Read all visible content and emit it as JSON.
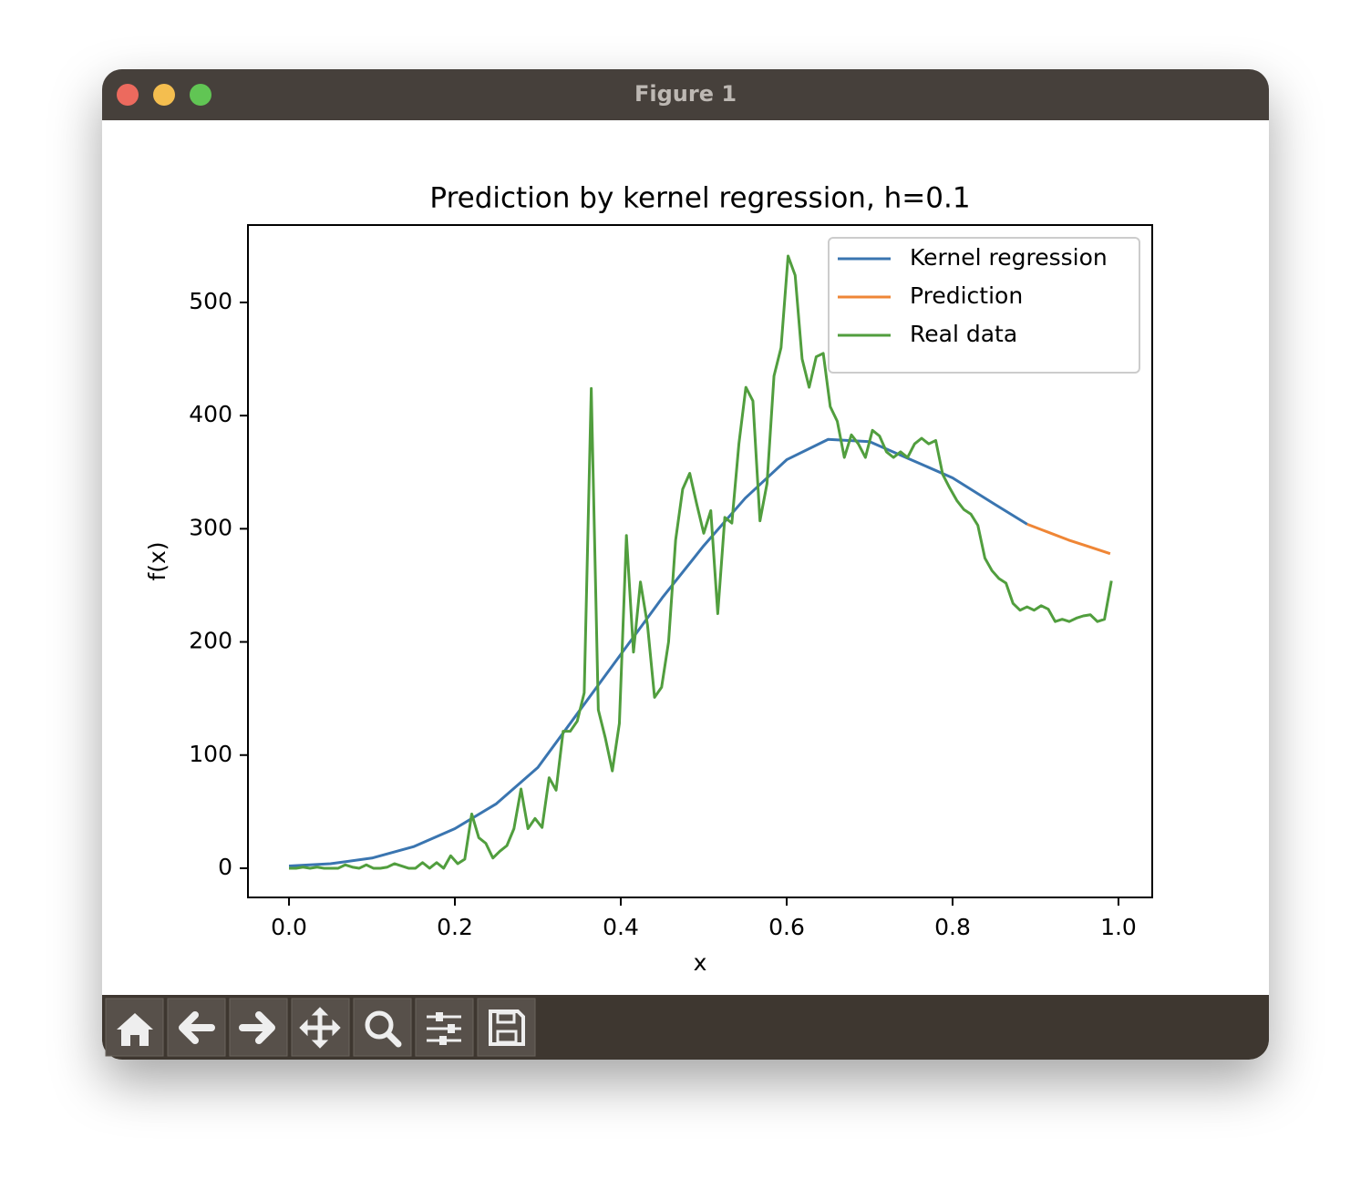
{
  "window": {
    "title": "Figure 1"
  },
  "chart_data": {
    "type": "line",
    "title": "Prediction by kernel regression, h=0.1",
    "x_label": "x",
    "y_label": "f(x)",
    "xlim": [
      -0.0495,
      1.0407
    ],
    "ylim": [
      -25.8,
      568.4
    ],
    "xticks": [
      {
        "value": 0,
        "label": "0.0"
      },
      0.2,
      0.4,
      0.6,
      0.8,
      {
        "value": 1,
        "label": "1.0"
      }
    ],
    "yticks": [
      0,
      100,
      200,
      300,
      400,
      500
    ],
    "legend": "upper right",
    "series": [
      {
        "name": "Kernel regression",
        "color": "#3a75b0",
        "x": [
          0,
          0.05,
          0.1,
          0.15,
          0.2,
          0.25,
          0.3,
          0.35,
          0.4,
          0.45,
          0.5,
          0.55,
          0.6,
          0.65,
          0.7,
          0.75,
          0.8,
          0.85,
          0.89
        ],
        "values": [
          2,
          4,
          9,
          19,
          35,
          57,
          89,
          139,
          189,
          239,
          285,
          327,
          361,
          379,
          377,
          361,
          345,
          322,
          304
        ]
      },
      {
        "name": "Prediction",
        "color": "#ef8636",
        "x": [
          0.89,
          0.915,
          0.94,
          0.965,
          0.99
        ],
        "values": [
          304,
          297,
          290,
          284,
          278
        ]
      },
      {
        "name": "Real data",
        "color": "#519e3e",
        "x": [
          0,
          0.0085,
          0.0169,
          0.0254,
          0.0339,
          0.0424,
          0.0508,
          0.0593,
          0.0678,
          0.0763,
          0.0847,
          0.0932,
          0.1017,
          0.1102,
          0.1186,
          0.1271,
          0.1356,
          0.1441,
          0.1525,
          0.161,
          0.1695,
          0.178,
          0.1864,
          0.1949,
          0.2034,
          0.2119,
          0.2203,
          0.2288,
          0.2373,
          0.2458,
          0.2542,
          0.2627,
          0.2712,
          0.2797,
          0.2881,
          0.2966,
          0.3051,
          0.3136,
          0.322,
          0.3305,
          0.339,
          0.3475,
          0.3559,
          0.3644,
          0.3729,
          0.3814,
          0.3898,
          0.3983,
          0.4068,
          0.4153,
          0.4237,
          0.4322,
          0.4407,
          0.4492,
          0.4576,
          0.4661,
          0.4746,
          0.4831,
          0.4915,
          0.5,
          0.5085,
          0.5169,
          0.5254,
          0.5339,
          0.5424,
          0.5508,
          0.5593,
          0.5678,
          0.5763,
          0.5847,
          0.5932,
          0.6017,
          0.6102,
          0.6186,
          0.6271,
          0.6356,
          0.6441,
          0.6525,
          0.661,
          0.6695,
          0.678,
          0.6864,
          0.6949,
          0.7034,
          0.7119,
          0.7203,
          0.7288,
          0.7373,
          0.7458,
          0.7542,
          0.7627,
          0.7712,
          0.7797,
          0.7881,
          0.7966,
          0.8051,
          0.8136,
          0.822,
          0.8305,
          0.839,
          0.8475,
          0.8559,
          0.8644,
          0.8729,
          0.8814,
          0.8898,
          0.8983,
          0.9068,
          0.9153,
          0.9237,
          0.9322,
          0.9407,
          0.9492,
          0.9576,
          0.9661,
          0.9746,
          0.9831,
          0.9915
        ],
        "values": [
          0,
          0,
          1,
          0,
          1,
          0,
          0,
          0,
          3,
          1,
          0,
          3,
          0,
          0,
          1,
          4,
          2,
          0,
          0,
          5,
          0,
          5,
          0,
          11,
          4,
          8,
          48,
          27,
          22,
          9,
          15,
          20,
          35,
          70,
          35,
          44,
          36,
          80,
          69,
          121,
          121,
          130,
          155,
          424,
          140,
          115,
          86,
          128,
          294,
          191,
          253,
          215,
          151,
          160,
          200,
          290,
          335,
          349,
          322,
          296,
          316,
          225,
          310,
          305,
          375,
          425,
          413,
          307,
          340,
          435,
          460,
          541,
          524,
          450,
          425,
          452,
          455,
          408,
          395,
          363,
          383,
          375,
          363,
          387,
          382,
          368,
          363,
          368,
          363,
          375,
          380,
          375,
          378,
          348,
          336,
          325,
          317,
          313,
          303,
          274,
          263,
          256,
          252,
          234,
          228,
          231,
          228,
          232,
          229,
          218,
          220,
          218,
          221,
          223,
          224,
          218,
          220,
          254
        ]
      }
    ]
  }
}
